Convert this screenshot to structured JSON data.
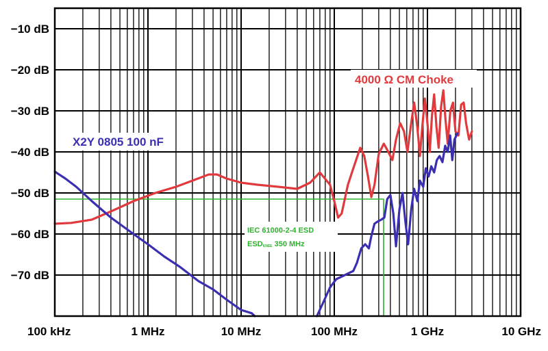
{
  "chart_data": {
    "type": "line",
    "x_scale": "log",
    "xlim_hz": [
      100000,
      10000000000
    ],
    "ylim_db": [
      -80,
      -5
    ],
    "grid": true,
    "x_ticks": [
      {
        "label": "100 kHz",
        "hz": 100000
      },
      {
        "label": "1 MHz",
        "hz": 1000000
      },
      {
        "label": "10 MHz",
        "hz": 10000000
      },
      {
        "label": "100 MHz",
        "hz": 100000000
      },
      {
        "label": "1 GHz",
        "hz": 1000000000
      },
      {
        "label": "10 GHz",
        "hz": 10000000000
      }
    ],
    "y_ticks": [
      {
        "label": "−10 dB",
        "db": -10
      },
      {
        "label": "−20 dB",
        "db": -20
      },
      {
        "label": "−30 dB",
        "db": -30
      },
      {
        "label": "−40 dB",
        "db": -40
      },
      {
        "label": "−50 dB",
        "db": -50
      },
      {
        "label": "−60 dB",
        "db": -60
      },
      {
        "label": "−70 dB",
        "db": -70
      }
    ],
    "series": [
      {
        "name": "4000 Ω CM Choke",
        "color": "#e03a3e",
        "points": [
          [
            100000,
            -57.5
          ],
          [
            150000,
            -57.3
          ],
          [
            250000,
            -56.5
          ],
          [
            400000,
            -54.5
          ],
          [
            700000,
            -52
          ],
          [
            1200000,
            -50
          ],
          [
            2000000,
            -48.5
          ],
          [
            3000000,
            -47
          ],
          [
            4500000,
            -45.5
          ],
          [
            5500000,
            -45.5
          ],
          [
            7000000,
            -46.5
          ],
          [
            10000000,
            -47.5
          ],
          [
            15000000,
            -48
          ],
          [
            25000000,
            -48.5
          ],
          [
            40000000,
            -49
          ],
          [
            55000000,
            -47.5
          ],
          [
            70000000,
            -45
          ],
          [
            90000000,
            -48
          ],
          [
            100000000,
            -52
          ],
          [
            110000000,
            -56
          ],
          [
            120000000,
            -55
          ],
          [
            140000000,
            -48
          ],
          [
            160000000,
            -44
          ],
          [
            190000000,
            -39
          ],
          [
            210000000,
            -41
          ],
          [
            230000000,
            -46
          ],
          [
            250000000,
            -51
          ],
          [
            270000000,
            -48
          ],
          [
            300000000,
            -40.5
          ],
          [
            340000000,
            -38
          ],
          [
            380000000,
            -40
          ],
          [
            420000000,
            -42
          ],
          [
            460000000,
            -37
          ],
          [
            510000000,
            -33
          ],
          [
            560000000,
            -35
          ],
          [
            610000000,
            -40
          ],
          [
            660000000,
            -34
          ],
          [
            720000000,
            -28
          ],
          [
            780000000,
            -34
          ],
          [
            830000000,
            -41
          ],
          [
            880000000,
            -34
          ],
          [
            940000000,
            -27
          ],
          [
            1000000000,
            -33
          ],
          [
            1060000000,
            -40
          ],
          [
            1120000000,
            -31
          ],
          [
            1180000000,
            -26
          ],
          [
            1250000000,
            -34
          ],
          [
            1320000000,
            -39
          ],
          [
            1400000000,
            -29
          ],
          [
            1480000000,
            -25
          ],
          [
            1560000000,
            -32
          ],
          [
            1650000000,
            -38
          ],
          [
            1760000000,
            -30
          ],
          [
            1880000000,
            -28
          ],
          [
            2000000000,
            -35
          ],
          [
            2150000000,
            -36
          ],
          [
            2300000000,
            -28.5
          ],
          [
            2450000000,
            -28
          ],
          [
            2600000000,
            -33
          ],
          [
            2800000000,
            -37
          ],
          [
            3000000000,
            -35
          ]
        ]
      },
      {
        "name": "X2Y 0805 100 nF",
        "color": "#3a2fb0",
        "points": [
          [
            100000,
            -44.8
          ],
          [
            130000,
            -46.5
          ],
          [
            170000,
            -48.5
          ],
          [
            250000,
            -52
          ],
          [
            400000,
            -56
          ],
          [
            700000,
            -60
          ],
          [
            1000000,
            -62.5
          ],
          [
            1500000,
            -65.5
          ],
          [
            2200000,
            -68
          ],
          [
            3500000,
            -71.5
          ],
          [
            5000000,
            -73.5
          ],
          [
            7000000,
            -76
          ],
          [
            10000000,
            -78.5
          ],
          [
            13000000,
            -79.3
          ],
          [
            14000000,
            -80
          ]
        ]
      },
      {
        "name": "",
        "color": "#3a2fb0",
        "points": [
          [
            65000000,
            -80
          ],
          [
            75000000,
            -77
          ],
          [
            90000000,
            -73
          ],
          [
            105000000,
            -71
          ],
          [
            130000000,
            -70
          ],
          [
            160000000,
            -69
          ],
          [
            175000000,
            -67
          ],
          [
            195000000,
            -63.5
          ],
          [
            215000000,
            -62.5
          ],
          [
            235000000,
            -63.5
          ],
          [
            250000000,
            -60.5
          ],
          [
            270000000,
            -57.5
          ],
          [
            290000000,
            -57
          ],
          [
            320000000,
            -56.5
          ],
          [
            345000000,
            -56
          ],
          [
            370000000,
            -51.5
          ],
          [
            400000000,
            -50.5
          ],
          [
            430000000,
            -55
          ],
          [
            460000000,
            -63
          ],
          [
            500000000,
            -54
          ],
          [
            540000000,
            -50
          ],
          [
            580000000,
            -57
          ],
          [
            620000000,
            -62.5
          ],
          [
            670000000,
            -54
          ],
          [
            720000000,
            -49
          ],
          [
            780000000,
            -52
          ],
          [
            830000000,
            -47
          ],
          [
            900000000,
            -48.5
          ],
          [
            960000000,
            -44
          ],
          [
            1030000000,
            -46
          ],
          [
            1100000000,
            -43.5
          ],
          [
            1180000000,
            -45
          ],
          [
            1260000000,
            -42
          ],
          [
            1350000000,
            -41
          ],
          [
            1450000000,
            -42.5
          ],
          [
            1550000000,
            -38.5
          ],
          [
            1650000000,
            -40
          ],
          [
            1750000000,
            -36
          ],
          [
            1850000000,
            -42
          ],
          [
            1950000000,
            -37
          ],
          [
            2100000000,
            -35.5
          ]
        ]
      }
    ],
    "series_labels": [
      {
        "text": "4000 Ω CM Choke",
        "color": "#e03a3e"
      },
      {
        "text": "X2Y 0805 100 nF",
        "color": "#3a2fb0"
      }
    ],
    "esd_limit": {
      "color": "#2db32d",
      "level_db": -51.5,
      "knee_hz": 350000000,
      "line1": "IEC 61000-2-4 ESD",
      "esd_main": "ESD",
      "esd_sub": "KNEE",
      "esd_rest": " 350 MHz"
    }
  }
}
